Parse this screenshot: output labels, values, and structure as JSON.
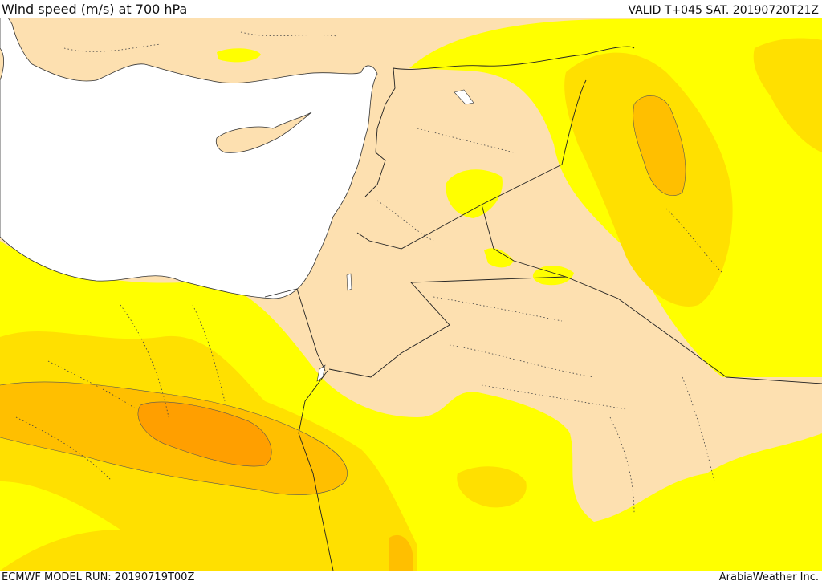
{
  "header": {
    "title": "Wind speed (m/s) at 700 hPa",
    "valid": "VALID T+045 SAT. 20190720T21Z"
  },
  "footer": {
    "model_run": "ECMWF MODEL RUN: 20190719T00Z",
    "provider": "ArabiaWeather Inc."
  },
  "map": {
    "variable": "wind speed",
    "level": "700 hPa",
    "region": "Eastern Mediterranean / Levant / Iraq / Egypt",
    "colors": {
      "sea": "#ffffff",
      "speed_lowest": "#fde0b0",
      "speed_low": "#ffff00",
      "speed_medium": "#ffe000",
      "speed_high": "#ffbf00",
      "speed_highest": "#ff9f00",
      "borders": "#333333"
    }
  }
}
